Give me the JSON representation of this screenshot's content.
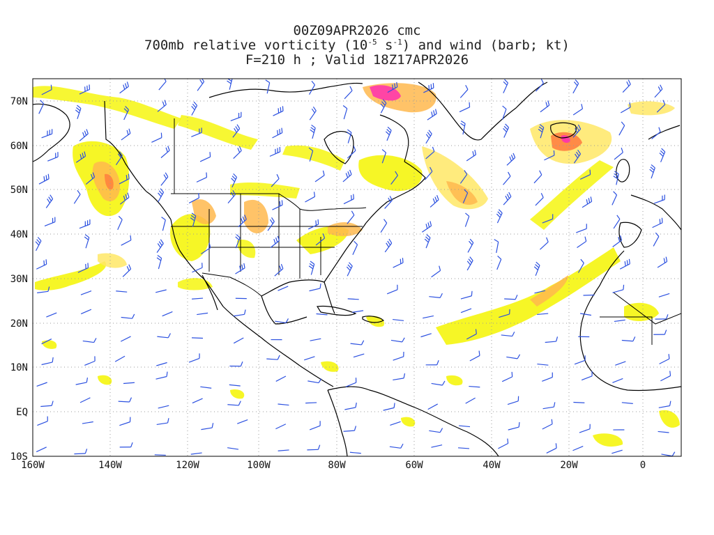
{
  "title": {
    "line1": "00Z09APR2026 cmc",
    "line2_pre": "700mb relative vorticity (10",
    "line2_exp1": "-5",
    "line2_mid": " s",
    "line2_exp2": "-1",
    "line2_post": ") and wind (barb; kt)",
    "line3": "F=210 h ; Valid 18Z17APR2026"
  },
  "axes": {
    "lat_labels": [
      "70N",
      "60N",
      "50N",
      "40N",
      "30N",
      "20N",
      "10N",
      "EQ",
      "10S"
    ],
    "lon_labels": [
      "160W",
      "140W",
      "120W",
      "100W",
      "80W",
      "60W",
      "40W",
      "20W",
      "0"
    ]
  },
  "colors": {
    "vort_light": "#f5f500",
    "vort_yellow": "#ffe766",
    "vort_orange": "#ffb84d",
    "vort_red": "#ff7a3d",
    "vort_magenta": "#ff2fb0",
    "barb": "#2b50e0",
    "coast": "#000000",
    "grid": "#9a9a9a"
  }
}
